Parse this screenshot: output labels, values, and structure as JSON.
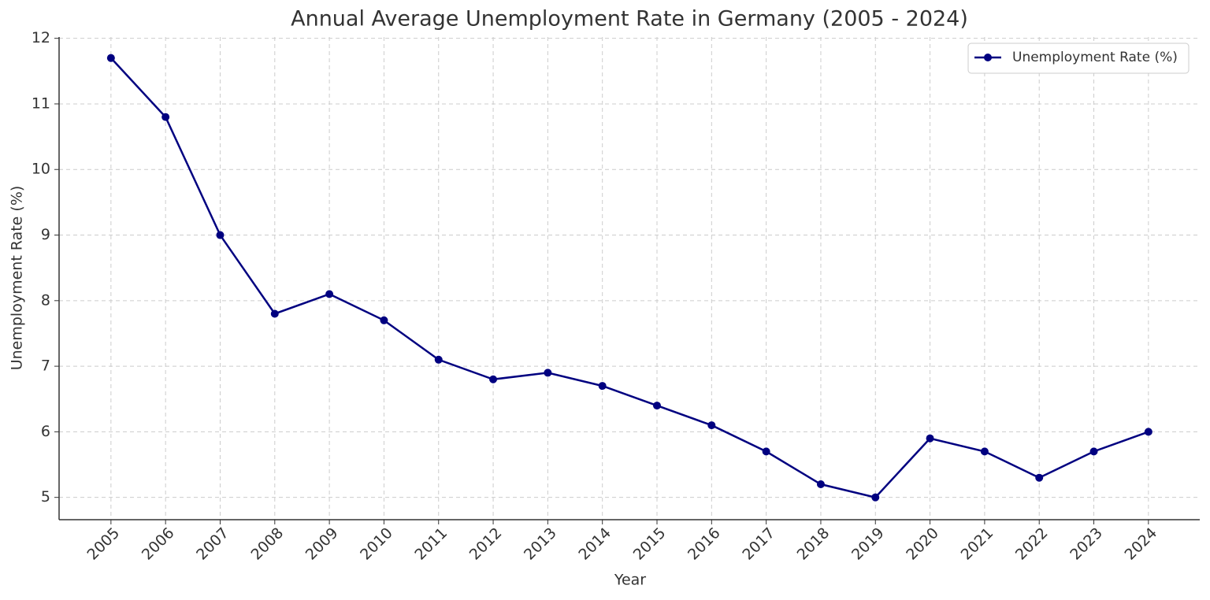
{
  "chart_data": {
    "type": "line",
    "title": "Annual Average Unemployment Rate in Germany (2005 - 2024)",
    "x_label": "Year",
    "y_label": "Unemployment Rate (%)",
    "x": [
      2005,
      2006,
      2007,
      2008,
      2009,
      2010,
      2011,
      2012,
      2013,
      2014,
      2015,
      2016,
      2017,
      2018,
      2019,
      2020,
      2021,
      2022,
      2023,
      2024
    ],
    "series": [
      {
        "name": "Unemployment Rate (%)",
        "color": "#000080",
        "values": [
          11.7,
          10.8,
          9.0,
          7.8,
          8.1,
          7.7,
          7.1,
          6.8,
          6.9,
          6.7,
          6.4,
          6.1,
          5.7,
          5.2,
          5.0,
          5.9,
          5.7,
          5.3,
          5.7,
          6.0
        ]
      }
    ],
    "xlim": [
      2004.05,
      2024.94
    ],
    "ylim": [
      4.66,
      12.02
    ],
    "xticks": [
      2005,
      2006,
      2007,
      2008,
      2009,
      2010,
      2011,
      2012,
      2013,
      2014,
      2015,
      2016,
      2017,
      2018,
      2019,
      2020,
      2021,
      2022,
      2023,
      2024
    ],
    "yticks": [
      5,
      6,
      7,
      8,
      9,
      10,
      11,
      12
    ],
    "grid": true,
    "legend": "upper right"
  }
}
